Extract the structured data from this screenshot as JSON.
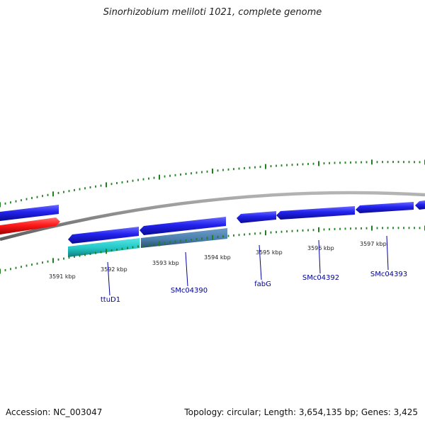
{
  "title": "Sinorhizobium meliloti 1021, complete genome",
  "footer": {
    "accession_label": "Accession:",
    "accession": "NC_003047",
    "topology_label": "Topology:",
    "topology": "circular",
    "length_label": "Length:",
    "length": "3,654,135 bp",
    "genes_label": "Genes:",
    "genes": "3,425"
  },
  "ruler_ticks": [
    "3591 kbp",
    "3592 kbp",
    "3593 kbp",
    "3594 kbp",
    "3595 kbp",
    "3596 kbp",
    "3597 kbp"
  ],
  "gene_labels": [
    "ttuD1",
    "SMc04390",
    "fabG",
    "SMc04392",
    "SMc04393"
  ],
  "colors": {
    "forward_gene": "#2020e8",
    "reverse_gene": "#ff2020",
    "cyan_feature": "#33cccc",
    "steel_feature": "#4a7fae",
    "backbone": "#8c8c8c",
    "tick": "#208020",
    "label": "#000099"
  }
}
